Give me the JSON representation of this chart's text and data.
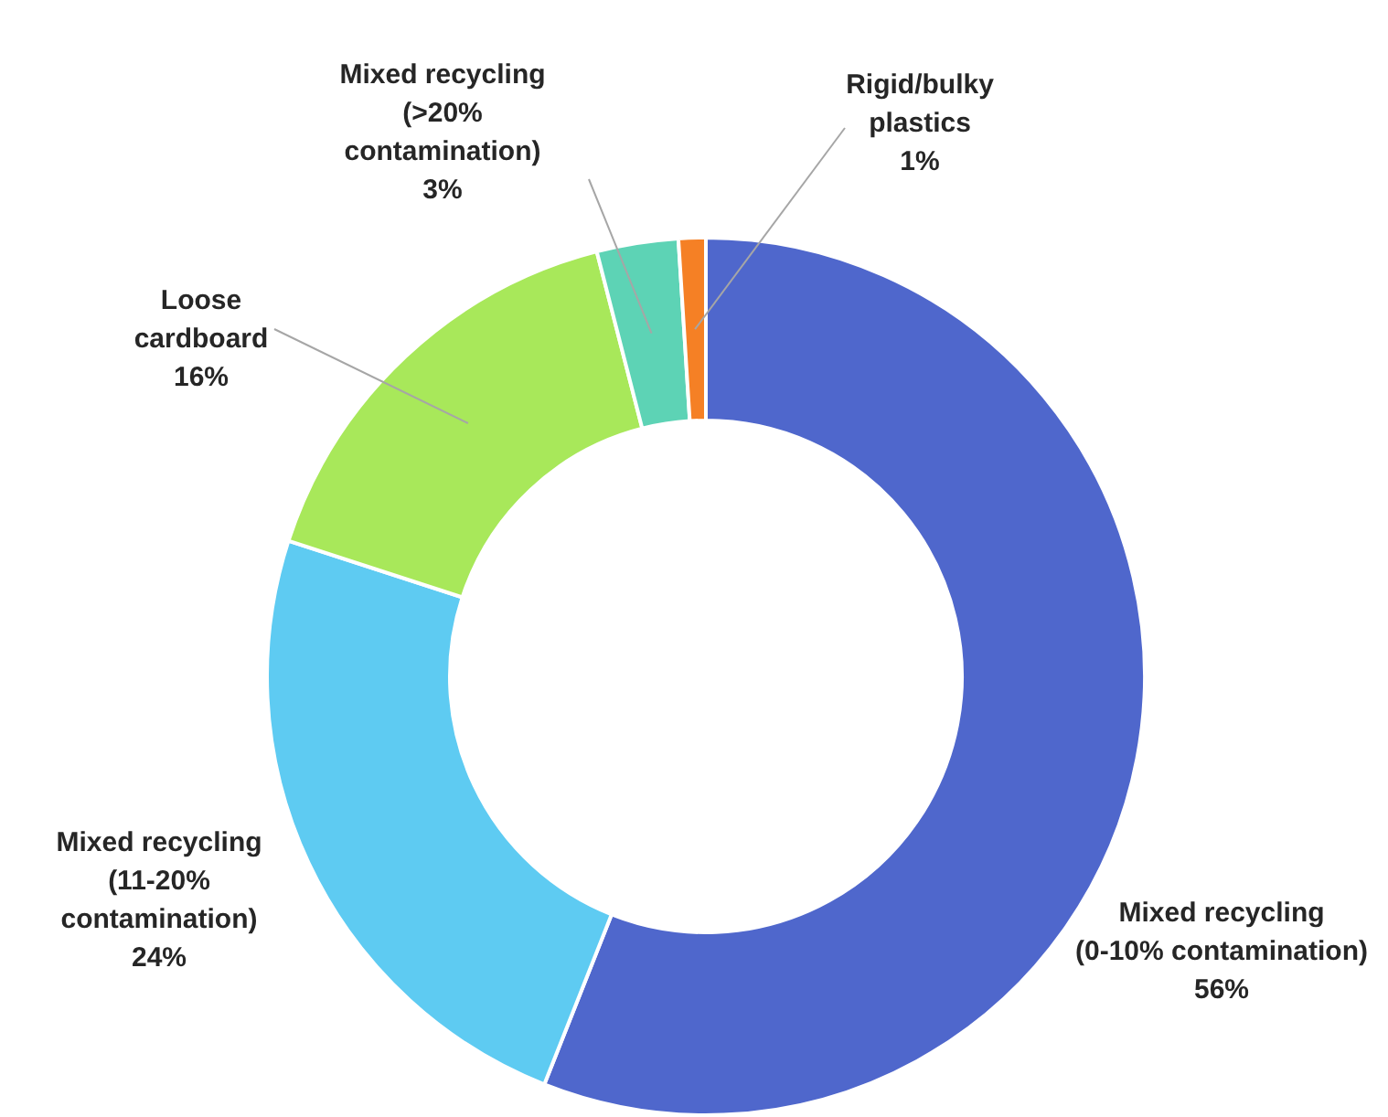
{
  "chart_data": {
    "type": "donut",
    "categories": [
      "Mixed recycling (0-10% contamination)",
      "Mixed recycling (11-20% contamination)",
      "Loose cardboard",
      "Mixed recycling (>20% contamination)",
      "Rigid/bulky plastics"
    ],
    "values": [
      56,
      24,
      16,
      3,
      1
    ],
    "value_labels": [
      "56%",
      "24%",
      "16%",
      "3%",
      "1%"
    ],
    "colors": [
      "#4f67cc",
      "#5ecbf2",
      "#a8e85a",
      "#5dd3b5",
      "#f58025"
    ]
  }
}
